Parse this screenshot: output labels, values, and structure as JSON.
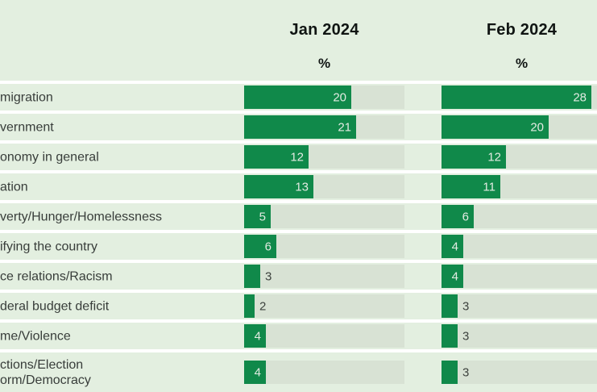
{
  "chart_data": {
    "type": "bar",
    "orientation": "horizontal",
    "title": "",
    "columns": [
      {
        "label": "Jan 2024",
        "unit": "%"
      },
      {
        "label": "Feb 2024",
        "unit": "%"
      }
    ],
    "rows": [
      {
        "label_lines": [
          "migration"
        ],
        "values": [
          20,
          28
        ]
      },
      {
        "label_lines": [
          "vernment"
        ],
        "values": [
          21,
          20
        ]
      },
      {
        "label_lines": [
          "onomy in general"
        ],
        "values": [
          12,
          12
        ]
      },
      {
        "label_lines": [
          "ation"
        ],
        "values": [
          13,
          11
        ]
      },
      {
        "label_lines": [
          "verty/Hunger/Homelessness"
        ],
        "values": [
          5,
          6
        ]
      },
      {
        "label_lines": [
          "ifying the country"
        ],
        "values": [
          6,
          4
        ]
      },
      {
        "label_lines": [
          "ce relations/Racism"
        ],
        "values": [
          3,
          4
        ]
      },
      {
        "label_lines": [
          "deral budget deficit"
        ],
        "values": [
          2,
          3
        ]
      },
      {
        "label_lines": [
          "me/Violence"
        ],
        "values": [
          4,
          3
        ]
      },
      {
        "label_lines": [
          "ctions/Election",
          "orm/Democracy"
        ],
        "values": [
          4,
          3
        ]
      }
    ],
    "series": [
      {
        "name": "Jan 2024",
        "values": [
          20,
          21,
          12,
          13,
          5,
          6,
          3,
          2,
          4,
          4
        ]
      },
      {
        "name": "Feb 2024",
        "values": [
          28,
          20,
          12,
          11,
          6,
          4,
          4,
          3,
          3,
          3
        ]
      }
    ],
    "xlim": [
      0,
      30
    ],
    "value_labels": "shown; inside bar (light) when value >= 4, outside bar (dark) when value <= 3",
    "grid": "off",
    "legend": "none; column headers above each bar group",
    "note_layout": "row labels are cropped at the left edge of the screenshot"
  },
  "colors": {
    "bar_green": "#10894a",
    "row_band": "#e3efe0",
    "bar_track": "#d8e2d4",
    "value_inside_text": "#e2ebe2",
    "value_outside_text": "#3d423e",
    "row_label_text": "#383d3a",
    "header_text": "#101513",
    "background": "#ffffff"
  }
}
